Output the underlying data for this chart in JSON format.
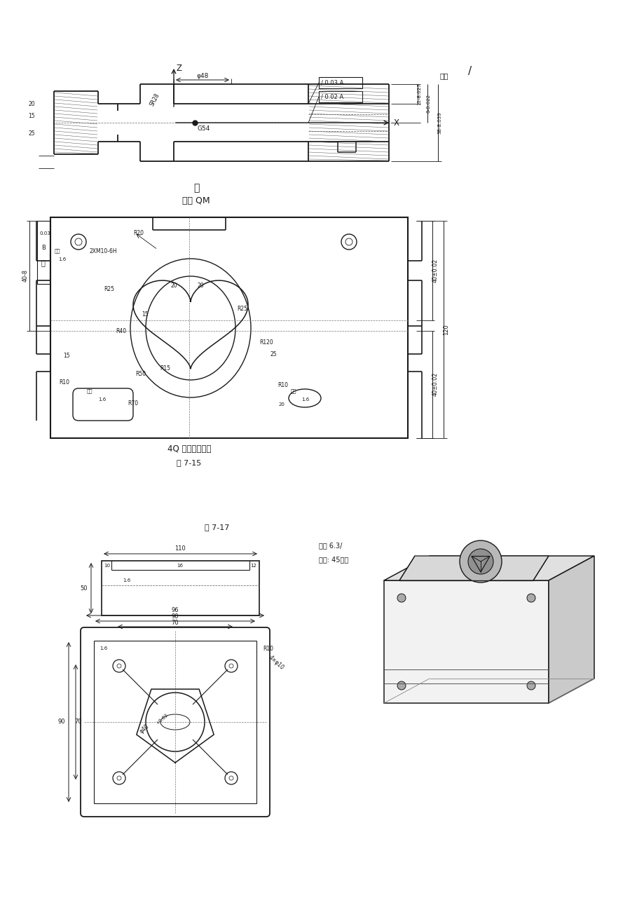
{
  "bg_color": "#ffffff",
  "line_color": "#1a1a1a",
  "title_wu": "呵",
  "title_sub": "屋吐 QM",
  "caption1": "4Q 切底上明」而",
  "fig715": "图 7-15",
  "fig717": "图 7-17",
  "tol1": "/ 0.03 A",
  "tol2": "/ 0.02 A",
  "qita1": "其余",
  "qita2": "其余 6.3/",
  "material": "材料: 45锐件",
  "g54": "G54",
  "sr28": "SR28",
  "phi48": "φ48",
  "z_axis": "Z",
  "x_axis": "X",
  "note_2xm10": "2XM10-6H",
  "r20": "R20",
  "r25": "R25",
  "r40": "R40",
  "r10": "R10",
  "r15": "R15",
  "r50": "R50",
  "r70": "R70",
  "r120": "R120",
  "dim_40_02": "40±0.02",
  "dim_120": "120",
  "dim_40_8": "40-8",
  "dim_20": "20",
  "dim_15": "15",
  "dim_25": "25",
  "dim_96": "96",
  "dim_90": "90",
  "dim_70": "70",
  "dim_r10": "R10",
  "dim_4xphi10": "4×φ10",
  "dim_phi40": "φ40",
  "dim_plus002": "+0.02",
  "dim_50": "50",
  "dim_110": "110",
  "dim_10": "10",
  "dim_16": "16",
  "dim_12": "12",
  "bianyuan": "侧边",
  "dim_1_6": "1.6"
}
